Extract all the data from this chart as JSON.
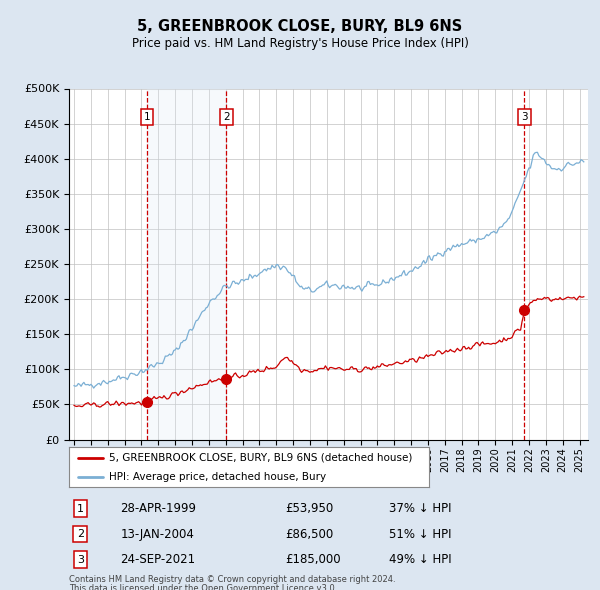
{
  "title": "5, GREENBROOK CLOSE, BURY, BL9 6NS",
  "subtitle": "Price paid vs. HM Land Registry's House Price Index (HPI)",
  "legend_line1": "5, GREENBROOK CLOSE, BURY, BL9 6NS (detached house)",
  "legend_line2": "HPI: Average price, detached house, Bury",
  "footer1": "Contains HM Land Registry data © Crown copyright and database right 2024.",
  "footer2": "This data is licensed under the Open Government Licence v3.0.",
  "table": [
    {
      "num": "1",
      "date": "28-APR-1999",
      "price": "£53,950",
      "hpi": "37% ↓ HPI"
    },
    {
      "num": "2",
      "date": "13-JAN-2004",
      "price": "£86,500",
      "hpi": "51% ↓ HPI"
    },
    {
      "num": "3",
      "date": "24-SEP-2021",
      "price": "£185,000",
      "hpi": "49% ↓ HPI"
    }
  ],
  "sale_dates": [
    1999.32,
    2004.04,
    2021.73
  ],
  "sale_prices": [
    53950,
    86500,
    185000
  ],
  "hpi_color": "#7bafd4",
  "hpi_fill": "#dce9f5",
  "price_color": "#cc0000",
  "background_color": "#dce6f1",
  "plot_bg_color": "#ffffff",
  "grid_color": "#c0c0c0",
  "vline_color": "#cc0000",
  "ylim": [
    0,
    500000
  ],
  "yticks": [
    0,
    50000,
    100000,
    150000,
    200000,
    250000,
    300000,
    350000,
    400000,
    450000,
    500000
  ],
  "xlim_start": 1994.7,
  "xlim_end": 2025.5
}
